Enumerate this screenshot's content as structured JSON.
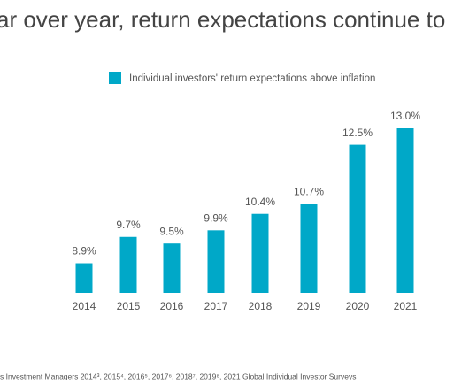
{
  "chart_data": {
    "type": "bar",
    "title": "ar over year, return expectations continue to",
    "categories": [
      "2014",
      "2015",
      "2016",
      "2017",
      "2018",
      "2019",
      "2020",
      "2021"
    ],
    "series": [
      {
        "name": "Individual investors' return expectations above inflation",
        "color": "#00a8c8",
        "values": [
          8.9,
          9.7,
          9.5,
          9.9,
          10.4,
          10.7,
          12.5,
          13.0
        ],
        "value_labels": [
          "8.9%",
          "9.7%",
          "9.5%",
          "9.9%",
          "10.4%",
          "10.7%",
          "12.5%",
          "13.0%"
        ]
      }
    ],
    "ylim": [
      8,
      13
    ],
    "source": "s Investment Managers 2014³, 2015⁴, 2016⁵, 2017⁶, 2018⁷, 2019⁸, 2021 Global Individual Investor Surveys"
  }
}
